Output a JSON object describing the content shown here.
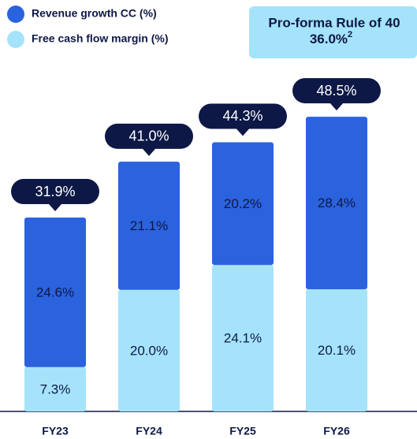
{
  "chart_data": {
    "type": "stacked_bar",
    "categories": [
      "FY23",
      "FY24",
      "FY25",
      "FY26"
    ],
    "series": [
      {
        "name": "Revenue growth CC (%)",
        "color": "#2b62de",
        "values": [
          24.6,
          21.1,
          20.2,
          28.4
        ],
        "value_labels": [
          "24.6%",
          "21.1%",
          "20.2%",
          "28.4%"
        ]
      },
      {
        "name": "Free cash flow margin (%)",
        "color": "#a5e3fa",
        "values": [
          7.3,
          20.0,
          24.1,
          20.1
        ],
        "value_labels": [
          "7.3%",
          "20.0%",
          "24.1%",
          "20.1%"
        ]
      }
    ],
    "totals": [
      31.9,
      41.0,
      44.3,
      48.5
    ],
    "total_labels": [
      "31.9%",
      "41.0%",
      "44.3%",
      "48.5%"
    ],
    "annotation": {
      "text": "Pro-forma Rule of 40",
      "value_label": "36.0%",
      "footnote": "2"
    }
  }
}
